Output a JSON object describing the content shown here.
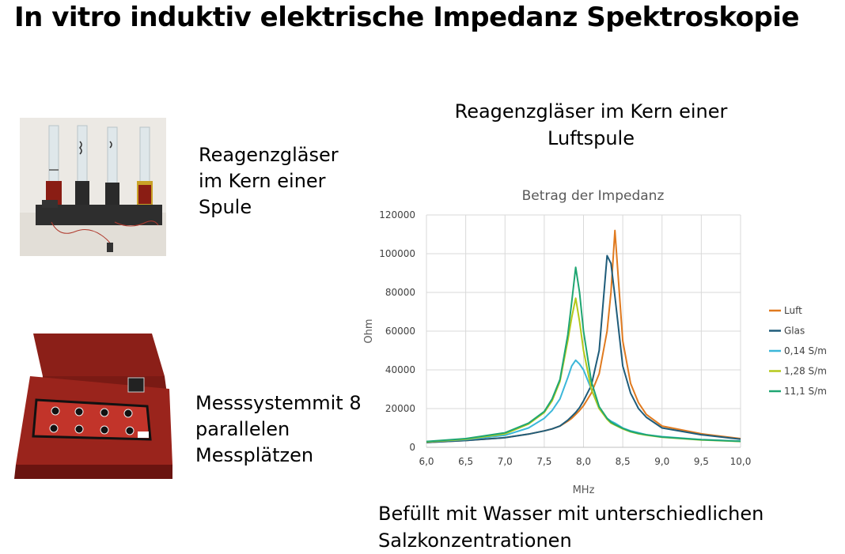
{
  "page": {
    "title": "In vitro induktiv elektrische Impedanz Spektroskopie",
    "caption_tubes": [
      "Reagenzgläser",
      "im Kern einer",
      "Spule"
    ],
    "caption_device": [
      "Messsystemmit 8",
      "parallelen",
      "Messplätzen"
    ],
    "chart_heading": [
      "Reagenzgläser im Kern einer",
      "Luftspule"
    ],
    "bottom_note": [
      "Befüllt mit Wasser mit unterschiedlichen",
      "Salzkonzentrationen"
    ]
  },
  "chart_data": {
    "type": "line",
    "title": "Betrag der Impedanz",
    "xlabel": "MHz",
    "ylabel": "Ohm",
    "xlim": [
      6.0,
      10.0
    ],
    "ylim": [
      0,
      120000
    ],
    "xticks": [
      "6,0",
      "6,5",
      "7,0",
      "7,5",
      "8,0",
      "8,5",
      "9,0",
      "9,5",
      "10,0"
    ],
    "yticks": [
      "0",
      "20000",
      "40000",
      "60000",
      "80000",
      "100000",
      "120000"
    ],
    "grid": true,
    "legend_position": "right",
    "x": [
      6.0,
      6.5,
      7.0,
      7.3,
      7.5,
      7.6,
      7.7,
      7.8,
      7.85,
      7.9,
      7.95,
      8.0,
      8.1,
      8.2,
      8.3,
      8.35,
      8.4,
      8.5,
      8.6,
      8.7,
      8.8,
      9.0,
      9.5,
      10.0
    ],
    "series": [
      {
        "name": "Luft",
        "color": "#E07A1F",
        "values": [
          2500,
          3500,
          5000,
          6800,
          8500,
          9500,
          11000,
          13500,
          15000,
          17000,
          19000,
          21500,
          28000,
          38000,
          60000,
          80000,
          112000,
          55000,
          33000,
          23000,
          17000,
          11000,
          7000,
          4500
        ]
      },
      {
        "name": "Glas",
        "color": "#1F5C7A",
        "values": [
          2500,
          3500,
          5000,
          6800,
          8500,
          9500,
          11000,
          14000,
          16000,
          18000,
          20500,
          24000,
          32000,
          50000,
          99000,
          95000,
          78000,
          42000,
          28000,
          20000,
          15500,
          10000,
          6500,
          4200
        ]
      },
      {
        "name": "0,14 S/m",
        "color": "#3BB7D9",
        "values": [
          2800,
          4000,
          6200,
          10000,
          15000,
          19000,
          25000,
          36000,
          42000,
          45000,
          43000,
          40000,
          30000,
          20000,
          15000,
          13500,
          12500,
          10000,
          8500,
          7500,
          6500,
          5500,
          4000,
          3200
        ]
      },
      {
        "name": "1,28 S/m",
        "color": "#B5C91A",
        "values": [
          2800,
          4200,
          7000,
          12000,
          18000,
          24000,
          34000,
          55000,
          67000,
          77000,
          65000,
          50000,
          30000,
          20000,
          14500,
          12500,
          11500,
          9500,
          8000,
          7000,
          6300,
          5200,
          3800,
          3000
        ]
      },
      {
        "name": "11,1 S/m",
        "color": "#1FA672",
        "values": [
          3000,
          4500,
          7500,
          12500,
          18500,
          25000,
          35000,
          58000,
          75000,
          93000,
          80000,
          60000,
          34000,
          21000,
          15000,
          13000,
          11800,
          9800,
          8200,
          7200,
          6500,
          5300,
          3900,
          3100
        ]
      }
    ]
  }
}
